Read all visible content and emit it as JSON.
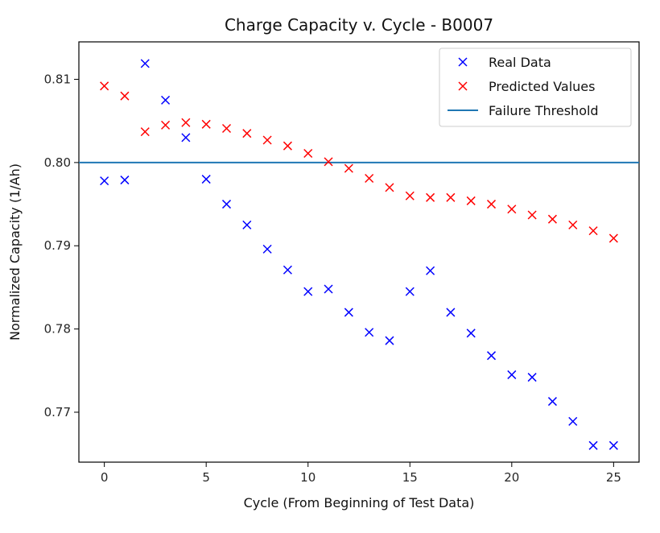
{
  "chart_data": {
    "type": "scatter",
    "title": "Charge Capacity v. Cycle - B0007",
    "xlabel": "Cycle (From Beginning of Test Data)",
    "ylabel": "Normalized Capacity (1/Ah)",
    "xlim": [
      -1.25,
      26.25
    ],
    "ylim": [
      0.764,
      0.8145
    ],
    "xticks": [
      0,
      5,
      10,
      15,
      20,
      25
    ],
    "yticks": [
      0.77,
      0.78,
      0.79,
      0.8,
      0.81
    ],
    "ytick_labels": [
      "0.77",
      "0.78",
      "0.79",
      "0.80",
      "0.81"
    ],
    "grid": false,
    "legend_position": "top-right",
    "x": [
      0,
      1,
      2,
      3,
      4,
      5,
      6,
      7,
      8,
      9,
      10,
      11,
      12,
      13,
      14,
      15,
      16,
      17,
      18,
      19,
      20,
      21,
      22,
      23,
      24,
      25
    ],
    "series": [
      {
        "name": "Real Data",
        "marker": "x",
        "color": "#0000ff",
        "values": [
          0.7978,
          0.7979,
          0.8119,
          0.8075,
          0.803,
          0.798,
          0.795,
          0.7925,
          0.7896,
          0.7871,
          0.7845,
          0.7848,
          0.782,
          0.7796,
          0.7786,
          0.7845,
          0.787,
          0.782,
          0.7795,
          0.7768,
          0.7745,
          0.7742,
          0.7713,
          0.7689,
          0.766,
          0.766
        ]
      },
      {
        "name": "Predicted Values",
        "marker": "x",
        "color": "#ff0000",
        "values": [
          0.8092,
          0.808,
          0.8037,
          0.8045,
          0.8048,
          0.8046,
          0.8041,
          0.8035,
          0.8027,
          0.802,
          0.8011,
          0.8001,
          0.7993,
          0.7981,
          0.797,
          0.796,
          0.7958,
          0.7958,
          0.7954,
          0.795,
          0.7944,
          0.7937,
          0.7932,
          0.7925,
          0.7918,
          0.7909
        ]
      }
    ],
    "threshold": {
      "name": "Failure Threshold",
      "value": 0.8,
      "color": "#1f77b4"
    }
  }
}
